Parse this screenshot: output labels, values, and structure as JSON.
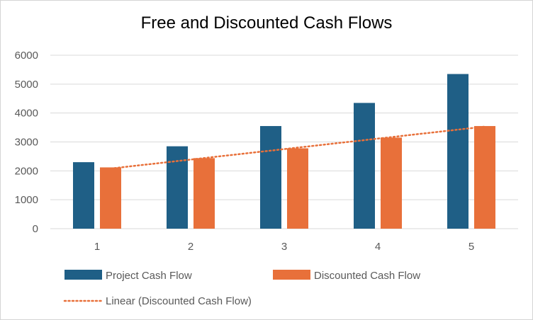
{
  "chart_data": {
    "type": "bar",
    "title": "Free and Discounted Cash Flows",
    "xlabel": "",
    "ylabel": "",
    "categories": [
      "1",
      "2",
      "3",
      "4",
      "5"
    ],
    "ylim": [
      0,
      6000
    ],
    "yticks": [
      "0",
      "1000",
      "2000",
      "3000",
      "4000",
      "5000",
      "6000"
    ],
    "grid": true,
    "legend_position": "bottom",
    "series": [
      {
        "name": "Project Cash Flow",
        "values": [
          2300,
          2850,
          3550,
          4350,
          5350
        ],
        "color": "#1f5f86"
      },
      {
        "name": "Discounted Cash Flow",
        "values": [
          2120,
          2440,
          2780,
          3150,
          3550
        ],
        "color": "#e8703a"
      }
    ],
    "trendline": {
      "name": "Linear (Discounted Cash Flow)",
      "type": "linear",
      "of_series": "Discounted Cash Flow",
      "start": 2080,
      "end": 3530,
      "color": "#e8703a",
      "style": "dotted"
    }
  }
}
